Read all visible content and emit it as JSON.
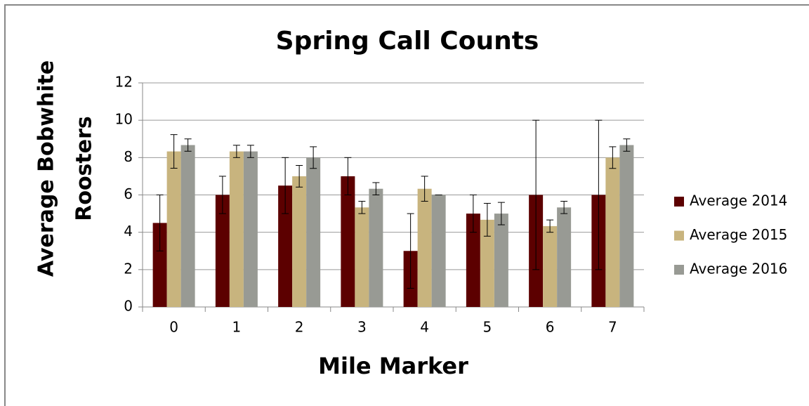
{
  "chart_data": {
    "type": "bar",
    "title": "Spring Call Counts",
    "x_label": "Mile Marker",
    "y_label": [
      "Average Bobwhite",
      "Roosters"
    ],
    "categories": [
      "0",
      "1",
      "2",
      "3",
      "4",
      "5",
      "6",
      "7"
    ],
    "series": [
      {
        "name": "Average 2014",
        "color": "#5c0000",
        "values": [
          4.5,
          6,
          6.5,
          7,
          3,
          5,
          6,
          6
        ],
        "errors": [
          1.5,
          1,
          1.5,
          1,
          2,
          1,
          4,
          4
        ]
      },
      {
        "name": "Average 2015",
        "color": "#c8b47e",
        "values": [
          8.33,
          8.33,
          7,
          5.33,
          6.33,
          4.67,
          4.33,
          8
        ],
        "errors": [
          0.9,
          0.33,
          0.58,
          0.33,
          0.67,
          0.88,
          0.33,
          0.58
        ]
      },
      {
        "name": "Average 2016",
        "color": "#989a94",
        "values": [
          8.67,
          8.33,
          8,
          6.33,
          6,
          5,
          5.33,
          8.67
        ],
        "errors": [
          0.33,
          0.33,
          0.58,
          0.33,
          0,
          0.6,
          0.33,
          0.33
        ]
      }
    ],
    "ylim": [
      0,
      12
    ],
    "yticks": [
      0,
      2,
      4,
      6,
      8,
      10,
      12
    ],
    "grid": true,
    "legend": "right"
  }
}
